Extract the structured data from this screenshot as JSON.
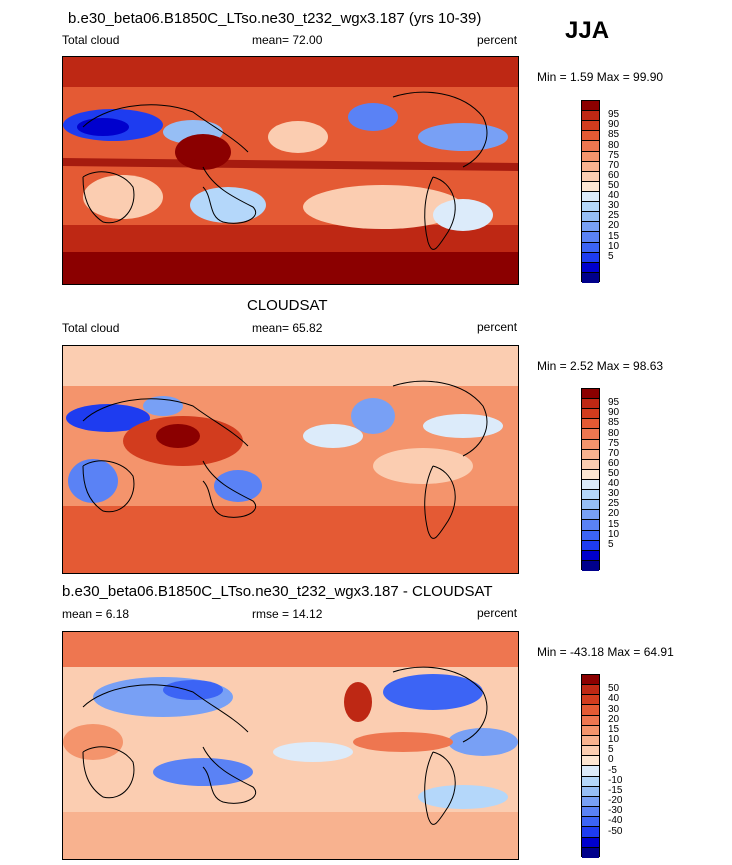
{
  "season": "JJA",
  "panels": [
    {
      "id": "model",
      "title": "b.e30_beta06.B1850C_LTso.ne30_t232_wgx3.187 (yrs 10-39)",
      "left_label": "Total cloud",
      "center_label": "mean=  72.00",
      "right_label": "percent",
      "minmax": "Min =   1.59 Max =  99.90",
      "palette": [
        "#00008b",
        "#0000cd",
        "#1e3cf0",
        "#3c64f5",
        "#5a82f5",
        "#78a0f5",
        "#96bef5",
        "#b4d7fa",
        "#dcebfa",
        "#fde6d2",
        "#fbcdb1",
        "#f8b28f",
        "#f4946c",
        "#ee7650",
        "#e45a34",
        "#d23c1e",
        "#be2814",
        "#8b0000"
      ],
      "levels": [
        "95",
        "90",
        "85",
        "80",
        "75",
        "70",
        "60",
        "50",
        "40",
        "30",
        "25",
        "20",
        "15",
        "10",
        "5"
      ]
    },
    {
      "id": "obs",
      "title": "CLOUDSAT",
      "left_label": "Total cloud",
      "center_label": "mean=  65.82",
      "right_label": "percent",
      "minmax": "Min =   2.52 Max =  98.63",
      "palette": [
        "#00008b",
        "#0000cd",
        "#1e3cf0",
        "#3c64f5",
        "#5a82f5",
        "#78a0f5",
        "#96bef5",
        "#b4d7fa",
        "#dcebfa",
        "#fde6d2",
        "#fbcdb1",
        "#f8b28f",
        "#f4946c",
        "#ee7650",
        "#e45a34",
        "#d23c1e",
        "#be2814",
        "#8b0000"
      ],
      "levels": [
        "95",
        "90",
        "85",
        "80",
        "75",
        "70",
        "60",
        "50",
        "40",
        "30",
        "25",
        "20",
        "15",
        "10",
        "5"
      ]
    },
    {
      "id": "diff",
      "title": "b.e30_beta06.B1850C_LTso.ne30_t232_wgx3.187 - CLOUDSAT",
      "left_label": "mean =   6.18",
      "center_label": "rmse =  14.12",
      "right_label": "percent",
      "minmax": "Min = -43.18 Max =  64.91",
      "palette": [
        "#00008b",
        "#0000cd",
        "#1e3cf0",
        "#3c64f5",
        "#5a82f5",
        "#78a0f5",
        "#96bef5",
        "#b4d7fa",
        "#dcebfa",
        "#fde6d2",
        "#fbcdb1",
        "#f8b28f",
        "#f4946c",
        "#ee7650",
        "#e45a34",
        "#d23c1e",
        "#be2814",
        "#8b0000"
      ],
      "levels": [
        "50",
        "40",
        "30",
        "20",
        "15",
        "10",
        "5",
        "0",
        "-5",
        "-10",
        "-15",
        "-20",
        "-30",
        "-40",
        "-50"
      ]
    }
  ]
}
